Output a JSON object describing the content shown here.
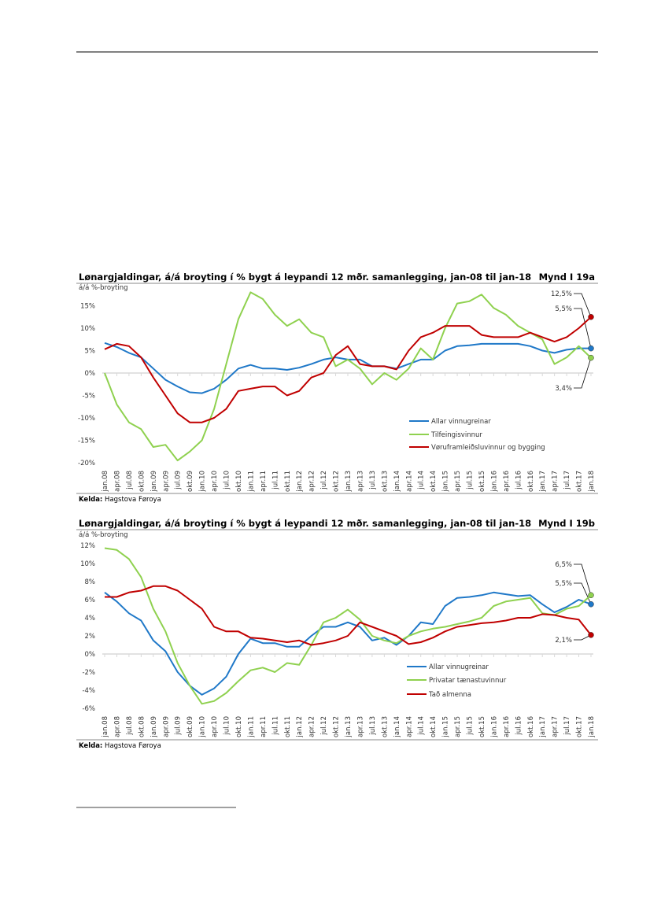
{
  "chart_data": [
    {
      "type": "line",
      "title": "Lønargjaldingar, á/á broyting í % bygt á leypandi 12 mðr. samanlegging, jan-08 til jan-18",
      "figure_label": "Mynd I 19a",
      "ylabel": "á/á %-broyting",
      "source_label": "Kelda:",
      "source": "Hagstova Føroya",
      "ylim": [
        -20,
        20
      ],
      "yticks": [
        15,
        10,
        5,
        0,
        -5,
        -10,
        -15,
        -20
      ],
      "ytick_labels": [
        "15%",
        "10%",
        "5%",
        "0%",
        "-5%",
        "-10%",
        "-15%",
        "-20%"
      ],
      "grid": false,
      "legend_position": "bottom-right",
      "categories": [
        "jan.08",
        "apr.08",
        "jul.08",
        "okt.08",
        "jan.09",
        "apr.09",
        "jul.09",
        "okt.09",
        "jan.10",
        "apr.10",
        "jul.10",
        "okt.10",
        "jan.11",
        "apr.11",
        "jul.11",
        "okt.11",
        "jan.12",
        "apr.12",
        "jul.12",
        "okt.12",
        "jan.13",
        "apr.13",
        "jul.13",
        "okt.13",
        "jan.14",
        "apr.14",
        "jul.14",
        "okt.14",
        "jan.15",
        "apr.15",
        "jul.15",
        "okt.15",
        "jan.16",
        "apr.16",
        "jul.16",
        "okt.16",
        "jan.17",
        "apr.17",
        "jul.17",
        "okt.17",
        "jan.18"
      ],
      "series": [
        {
          "name": "Allar vinnugreinar",
          "color": "#1f78c8",
          "end_label": "5,5%",
          "values": [
            6.7,
            5.8,
            4.5,
            3.5,
            1,
            -1.5,
            -3,
            -4.3,
            -4.5,
            -3.5,
            -1.5,
            1,
            1.8,
            1,
            1,
            0.7,
            1.2,
            2,
            3,
            3.5,
            3,
            3,
            1.5,
            1.5,
            1,
            2,
            3,
            3,
            5,
            6,
            6.2,
            6.5,
            6.5,
            6.5,
            6.5,
            6,
            5,
            4.5,
            5.2,
            5.5,
            5.5
          ]
        },
        {
          "name": "Tilfeingisvinnur",
          "color": "#8fd14f",
          "end_label": "3,4%",
          "values": [
            0,
            -7,
            -11,
            -12.5,
            -16.5,
            -16,
            -19.5,
            -17.5,
            -15,
            -8,
            2,
            12,
            18,
            16.5,
            13,
            10.5,
            12,
            9,
            8,
            1.5,
            3,
            1,
            -2.5,
            0,
            -1.5,
            1,
            5.5,
            3,
            10,
            15.5,
            16,
            17.5,
            14.5,
            13,
            10.5,
            9,
            7.5,
            2,
            3.5,
            6,
            3.4
          ]
        },
        {
          "name": "Vøruframleiðsluvinnur og bygging",
          "color": "#c00000",
          "end_label": "12,5%",
          "values": [
            5.3,
            6.5,
            6,
            3.5,
            -1,
            -5,
            -9,
            -11,
            -11,
            -10,
            -8,
            -4,
            -3.5,
            -3,
            -3,
            -5,
            -4,
            -1,
            0,
            4,
            6,
            2,
            1.5,
            1.5,
            0.8,
            5,
            8,
            9,
            10.5,
            10.5,
            10.5,
            8.5,
            8,
            8,
            8,
            9,
            8,
            7,
            8,
            10,
            12.5
          ]
        }
      ]
    },
    {
      "type": "line",
      "title": "Lønargjaldingar, á/á broyting í % bygt á leypandi 12 mðr. samanlegging, jan-08 til jan-18",
      "figure_label": "Mynd I 19b",
      "ylabel": "á/á %-broyting",
      "source_label": "Kelda:",
      "source": "Hagstova Føroya",
      "ylim": [
        -6,
        12
      ],
      "yticks": [
        12,
        10,
        8,
        6,
        4,
        2,
        0,
        -2,
        -4,
        -6
      ],
      "ytick_labels": [
        "12%",
        "10%",
        "8%",
        "6%",
        "4%",
        "2%",
        "0%",
        "-2%",
        "-4%",
        "-6%"
      ],
      "grid": false,
      "legend_position": "bottom-right",
      "categories": [
        "jan.08",
        "apr.08",
        "jul.08",
        "okt.08",
        "jan.09",
        "apr.09",
        "jul.09",
        "okt.09",
        "jan.10",
        "apr.10",
        "jul.10",
        "okt.10",
        "jan.11",
        "apr.11",
        "jul.11",
        "okt.11",
        "jan.12",
        "apr.12",
        "jul.12",
        "okt.12",
        "jan.13",
        "apr.13",
        "jul.13",
        "okt.13",
        "jan.14",
        "apr.14",
        "jul.14",
        "okt.14",
        "jan.15",
        "apr.15",
        "jul.15",
        "okt.15",
        "jan.16",
        "apr.16",
        "jul.16",
        "okt.16",
        "jan.17",
        "apr.17",
        "jul.17",
        "okt.17",
        "jan.18"
      ],
      "series": [
        {
          "name": "Allar vinnugreinar",
          "color": "#1f78c8",
          "end_label": "5,5%",
          "values": [
            6.8,
            5.8,
            4.5,
            3.7,
            1.5,
            0.3,
            -2,
            -3.5,
            -4.5,
            -3.8,
            -2.5,
            0,
            1.7,
            1.2,
            1.2,
            0.8,
            0.8,
            2,
            3,
            3,
            3.5,
            3,
            1.5,
            1.8,
            1,
            2,
            3.5,
            3.3,
            5.3,
            6.2,
            6.3,
            6.5,
            6.8,
            6.6,
            6.4,
            6.5,
            5.5,
            4.6,
            5.2,
            6,
            5.5
          ]
        },
        {
          "name": "Privatar tænastuvinnur",
          "color": "#8fd14f",
          "end_label": "6,5%",
          "values": [
            11.7,
            11.5,
            10.5,
            8.5,
            5,
            2.5,
            -1,
            -3.5,
            -5.5,
            -5.2,
            -4.3,
            -3,
            -1.8,
            -1.5,
            -2,
            -1,
            -1.2,
            1,
            3.5,
            4,
            4.9,
            3.8,
            2,
            1.5,
            1.2,
            2,
            2.5,
            2.8,
            3,
            3.3,
            3.6,
            4,
            5.3,
            5.8,
            6,
            6.2,
            4.5,
            4.3,
            5,
            5.3,
            6.5
          ]
        },
        {
          "name": "Tað almenna",
          "color": "#c00000",
          "end_label": "2,1%",
          "values": [
            6.3,
            6.3,
            6.8,
            7,
            7.5,
            7.5,
            7,
            6,
            5,
            3,
            2.5,
            2.5,
            1.8,
            1.7,
            1.5,
            1.3,
            1.5,
            1,
            1.2,
            1.5,
            2,
            3.5,
            3,
            2.5,
            2,
            1.1,
            1.3,
            1.8,
            2.5,
            3,
            3.2,
            3.4,
            3.5,
            3.7,
            4,
            4,
            4.4,
            4.3,
            4,
            3.8,
            2.1
          ]
        }
      ]
    }
  ]
}
